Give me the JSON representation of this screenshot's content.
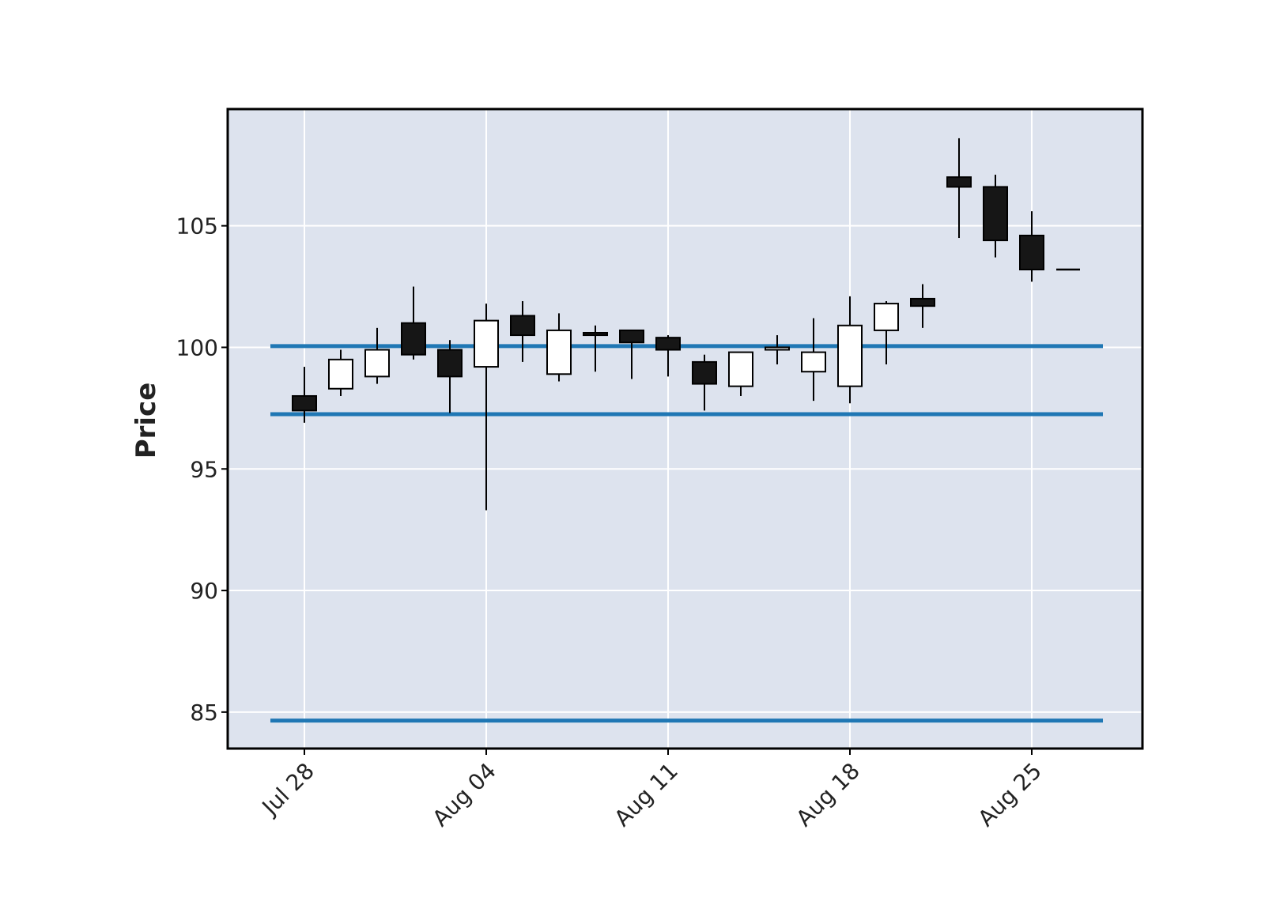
{
  "chart_data": {
    "type": "candlestick",
    "ylabel": "Price",
    "ylim": [
      83.5,
      109.8
    ],
    "grid": true,
    "colors": {
      "background": "#dde3ee",
      "grid": "#ffffff",
      "frame": "#000000",
      "up_fill": "#ffffff",
      "down_fill": "#161616",
      "wick": "#000000",
      "hlines": "#1f77b4"
    },
    "yticks": [
      85,
      90,
      95,
      100,
      105
    ],
    "xticks": [
      {
        "index": 0,
        "label": "Jul 28"
      },
      {
        "index": 5,
        "label": "Aug 04"
      },
      {
        "index": 10,
        "label": "Aug 11"
      },
      {
        "index": 15,
        "label": "Aug 18"
      },
      {
        "index": 20,
        "label": "Aug 25"
      }
    ],
    "candles": [
      {
        "date": "Jul 28",
        "open": 98.0,
        "high": 99.2,
        "low": 96.9,
        "close": 97.4
      },
      {
        "date": "Jul 29",
        "open": 98.3,
        "high": 99.9,
        "low": 98.0,
        "close": 99.5
      },
      {
        "date": "Jul 30",
        "open": 98.8,
        "high": 100.8,
        "low": 98.5,
        "close": 99.9
      },
      {
        "date": "Jul 31",
        "open": 101.0,
        "high": 102.5,
        "low": 99.5,
        "close": 99.7
      },
      {
        "date": "Aug 01",
        "open": 99.9,
        "high": 100.3,
        "low": 97.3,
        "close": 98.8
      },
      {
        "date": "Aug 04",
        "open": 99.2,
        "high": 101.8,
        "low": 93.3,
        "close": 101.1
      },
      {
        "date": "Aug 05",
        "open": 101.3,
        "high": 101.9,
        "low": 99.4,
        "close": 100.5
      },
      {
        "date": "Aug 06",
        "open": 98.9,
        "high": 101.4,
        "low": 98.6,
        "close": 100.7
      },
      {
        "date": "Aug 07",
        "open": 100.6,
        "high": 100.9,
        "low": 99.0,
        "close": 100.5
      },
      {
        "date": "Aug 08",
        "open": 100.7,
        "high": 100.7,
        "low": 98.7,
        "close": 100.2
      },
      {
        "date": "Aug 11",
        "open": 100.4,
        "high": 100.5,
        "low": 98.8,
        "close": 99.9
      },
      {
        "date": "Aug 12",
        "open": 99.4,
        "high": 99.7,
        "low": 97.4,
        "close": 98.5
      },
      {
        "date": "Aug 13",
        "open": 98.4,
        "high": 99.8,
        "low": 98.0,
        "close": 99.8
      },
      {
        "date": "Aug 14",
        "open": 99.9,
        "high": 100.5,
        "low": 99.3,
        "close": 100.0
      },
      {
        "date": "Aug 15",
        "open": 99.0,
        "high": 101.2,
        "low": 97.8,
        "close": 99.8
      },
      {
        "date": "Aug 18",
        "open": 98.4,
        "high": 102.1,
        "low": 97.7,
        "close": 100.9
      },
      {
        "date": "Aug 19",
        "open": 100.7,
        "high": 101.9,
        "low": 99.3,
        "close": 101.8
      },
      {
        "date": "Aug 20",
        "open": 102.0,
        "high": 102.6,
        "low": 100.8,
        "close": 101.7
      },
      {
        "date": "Aug 21",
        "open": 107.0,
        "high": 108.6,
        "low": 104.5,
        "close": 106.6
      },
      {
        "date": "Aug 22",
        "open": 106.6,
        "high": 107.1,
        "low": 103.7,
        "close": 104.4
      },
      {
        "date": "Aug 25",
        "open": 104.6,
        "high": 105.6,
        "low": 102.7,
        "close": 103.2
      },
      {
        "date": "Aug 26",
        "open": 103.2,
        "high": 103.2,
        "low": 103.2,
        "close": 103.2
      }
    ],
    "hlines": [
      100.05,
      97.25,
      84.65
    ]
  }
}
